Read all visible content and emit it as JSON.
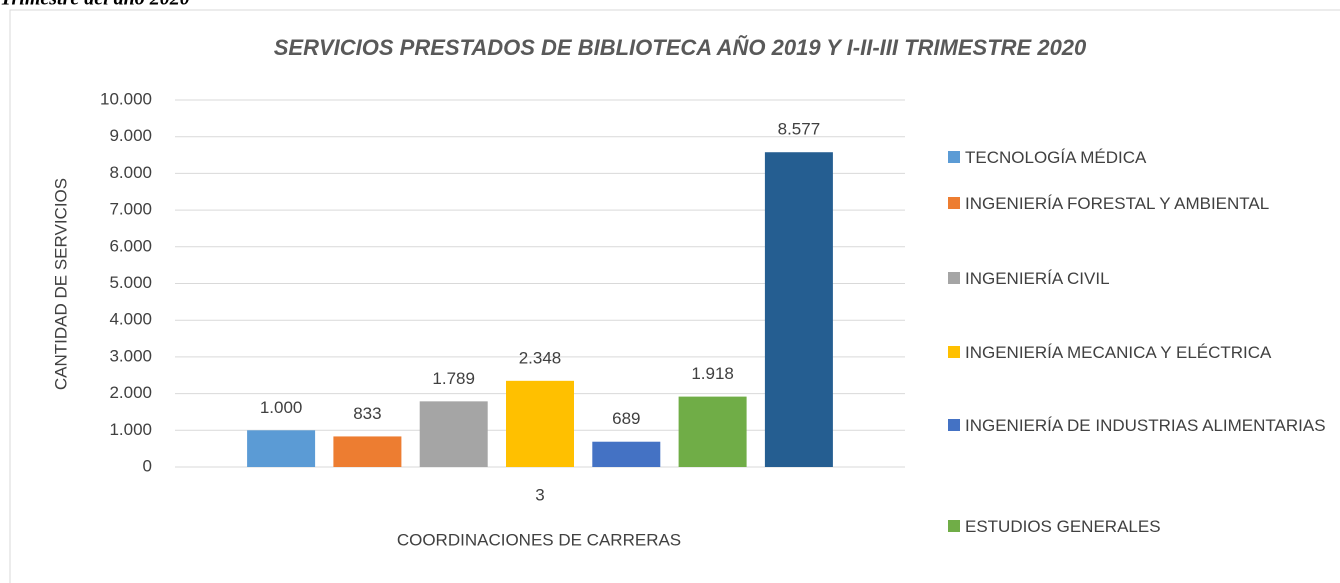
{
  "caption": "Trimestre del año 2020",
  "chart_data": {
    "type": "bar",
    "title": "SERVICIOS PRESTADOS DE BIBLIOTECA AÑO 2019 Y I-II-III TRIMESTRE 2020",
    "x_label": "COORDINACIONES DE CARRERAS",
    "y_label": "CANTIDAD DE SERVICIOS",
    "categories": [
      "3"
    ],
    "series": [
      {
        "name": "TECNOLOGÍA MÉDICA",
        "color": "#5b9bd5",
        "values": [
          1000
        ],
        "value_labels": [
          "1.000"
        ]
      },
      {
        "name": "INGENIERÍA FORESTAL Y AMBIENTAL",
        "color": "#ed7d31",
        "values": [
          833
        ],
        "value_labels": [
          "833"
        ]
      },
      {
        "name": "INGENIERÍA CIVIL",
        "color": "#a5a5a5",
        "values": [
          1789
        ],
        "value_labels": [
          "1.789"
        ]
      },
      {
        "name": "INGENIERÍA MECANICA Y ELÉCTRICA",
        "color": "#ffc000",
        "values": [
          2348
        ],
        "value_labels": [
          "2.348"
        ]
      },
      {
        "name": "INGENIERÍA DE INDUSTRIAS ALIMENTARIAS",
        "color": "#4472c4",
        "values": [
          689
        ],
        "value_labels": [
          "689"
        ]
      },
      {
        "name": "ESTUDIOS GENERALES",
        "color": "#70ad47",
        "values": [
          1918
        ],
        "value_labels": [
          "1.918"
        ]
      },
      {
        "name": null,
        "color": "#255e91",
        "values": [
          8577
        ],
        "value_labels": [
          "8.577"
        ]
      }
    ],
    "ylim": [
      0,
      10000
    ],
    "yticks": [
      0,
      {
        "value": 1000,
        "label": "1.000"
      },
      {
        "value": 2000,
        "label": "2.000"
      },
      {
        "value": 3000,
        "label": "3.000"
      },
      {
        "value": 4000,
        "label": "4.000"
      },
      {
        "value": 5000,
        "label": "5.000"
      },
      {
        "value": 6000,
        "label": "6.000"
      },
      {
        "value": 7000,
        "label": "7.000"
      },
      {
        "value": 8000,
        "label": "8.000"
      },
      {
        "value": 9000,
        "label": "9.000"
      },
      {
        "value": 10000,
        "label": "10.000"
      }
    ],
    "grid": true,
    "legend": "right"
  }
}
